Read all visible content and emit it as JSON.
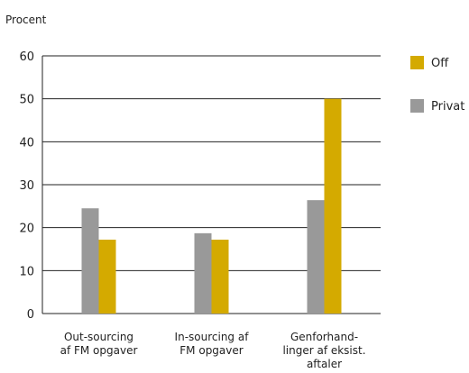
{
  "chart_data": {
    "type": "bar",
    "ylabel": "Procent",
    "ylim": [
      0,
      60
    ],
    "yticks": [
      "0",
      "10",
      "20",
      "30",
      "40",
      "50",
      "60"
    ],
    "grid": true,
    "legend_placement": "right",
    "categories": [
      [
        "Out-sourcing",
        "af FM opgaver"
      ],
      [
        "In-sourcing af",
        "FM opgaver"
      ],
      [
        "Genforhand-",
        "linger af eksist.",
        "aftaler"
      ]
    ],
    "series": [
      {
        "name": "Privat",
        "color": "#999999",
        "values": [
          24.5,
          18.7,
          26.4
        ]
      },
      {
        "name": "Off",
        "color": "#d4aa00",
        "values": [
          17.2,
          17.2,
          50.0
        ]
      }
    ],
    "legend_order": [
      "Off",
      "Privat"
    ]
  }
}
